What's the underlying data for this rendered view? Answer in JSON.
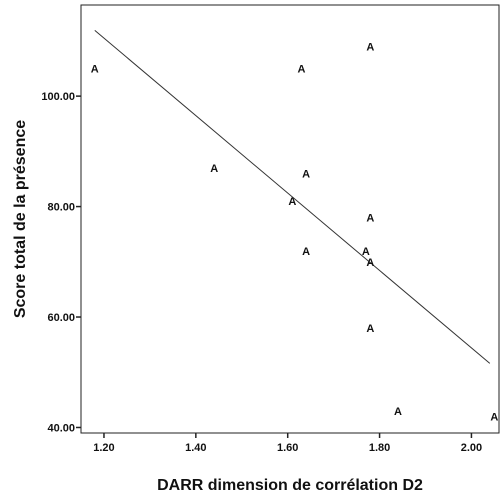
{
  "chart_data": {
    "type": "scatter",
    "xlabel": "DARR dimension de corrélation D2",
    "ylabel": "Score total de la présence",
    "xlim": [
      1.15,
      2.06
    ],
    "ylim": [
      39.0,
      116.5
    ],
    "x_ticks": [
      {
        "value": 1.2,
        "label": "1.20"
      },
      {
        "value": 1.4,
        "label": "1.40"
      },
      {
        "value": 1.6,
        "label": "1.60"
      },
      {
        "value": 1.8,
        "label": "1.80"
      },
      {
        "value": 2.0,
        "label": "2.00"
      }
    ],
    "y_ticks": [
      {
        "value": 40,
        "label": "40.00"
      },
      {
        "value": 60,
        "label": "60.00"
      },
      {
        "value": 80,
        "label": "80.00"
      },
      {
        "value": 100,
        "label": "100.00"
      }
    ],
    "marker_label": "A",
    "grid": false,
    "series": [
      {
        "points": [
          {
            "x": 1.18,
            "y": 105
          },
          {
            "x": 1.44,
            "y": 87
          },
          {
            "x": 1.63,
            "y": 105
          },
          {
            "x": 1.64,
            "y": 86
          },
          {
            "x": 1.61,
            "y": 81
          },
          {
            "x": 1.64,
            "y": 72
          },
          {
            "x": 1.78,
            "y": 109
          },
          {
            "x": 1.78,
            "y": 78
          },
          {
            "x": 1.77,
            "y": 72
          },
          {
            "x": 1.78,
            "y": 70
          },
          {
            "x": 1.78,
            "y": 58
          },
          {
            "x": 1.84,
            "y": 43
          },
          {
            "x": 2.05,
            "y": 42
          }
        ]
      }
    ],
    "fit_line": {
      "x1": 1.18,
      "y1": 111.9,
      "x2": 2.04,
      "y2": 51.6
    }
  }
}
